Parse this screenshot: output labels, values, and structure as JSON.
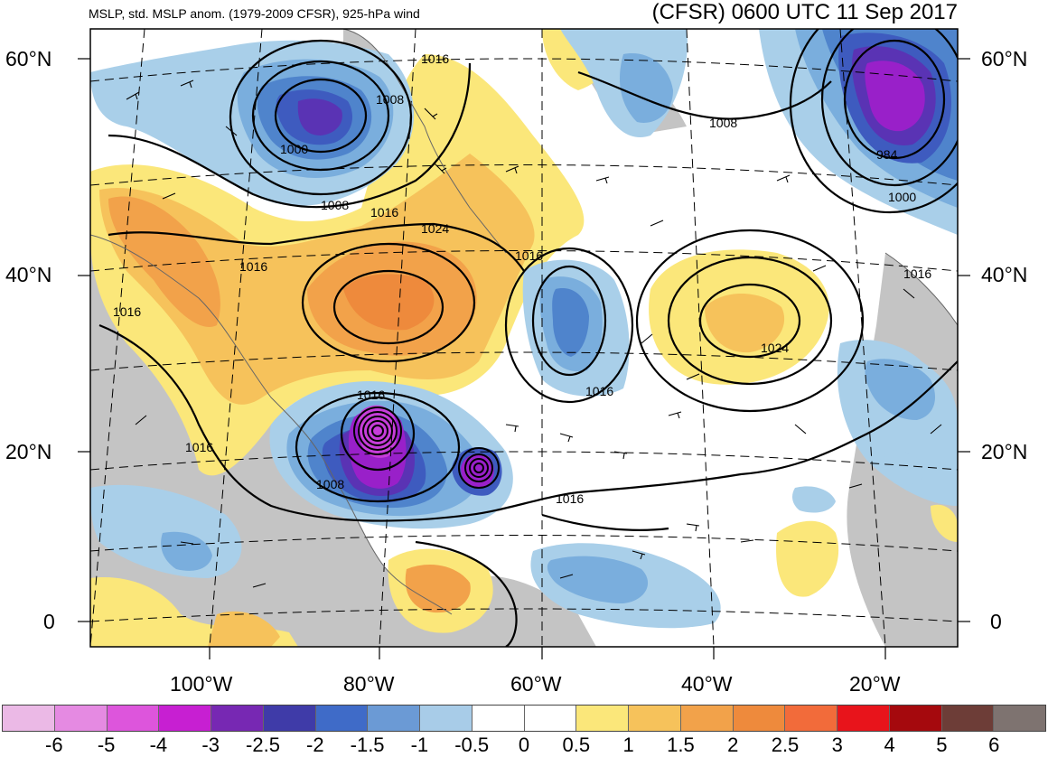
{
  "header": {
    "left_title": "MSLP, std. MSLP anom. (1979-2009 CFSR), 925-hPa wind",
    "right_title": "(CFSR) 0600 UTC 11 Sep 2017"
  },
  "map": {
    "lat_labels": [
      "60°N",
      "40°N",
      "20°N",
      "0"
    ],
    "lon_labels": [
      "100°W",
      "80°W",
      "60°W",
      "40°W",
      "20°W"
    ],
    "contour_labels": [
      "1016",
      "1008",
      "1000",
      "1008",
      "1016",
      "1024",
      "1016",
      "1016",
      "1016",
      "1016",
      "1016",
      "1008",
      "1016",
      "1016",
      "1008",
      "984",
      "1000",
      "1016",
      "1024"
    ],
    "colors": {
      "land_gray": "#c4c4c4",
      "anom_pos_1": "#fbe77a",
      "anom_pos_2": "#f6c25b",
      "anom_pos_3": "#f2a24a",
      "anom_pos_4": "#ee8a3c",
      "anom_neg_1": "#a9cfe9",
      "anom_neg_2": "#7aaedd",
      "anom_neg_3": "#4f84cc",
      "anom_neg_4": "#3e5bbf",
      "anom_neg_5": "#5a33b4",
      "anom_neg_6": "#9920c9",
      "anom_neg_7": "#c63dd9"
    }
  },
  "colorbar": {
    "colors": [
      "#ebb9e6",
      "#e58ae2",
      "#dd55dc",
      "#c71fd2",
      "#7728b3",
      "#3f3ba8",
      "#3f6bc8",
      "#6b9ad5",
      "#a8cce8",
      "#ffffff",
      "#ffffff",
      "#fbe77a",
      "#f6c25b",
      "#f2a24a",
      "#ee8a3c",
      "#f26b3a",
      "#e8141b",
      "#a5090d",
      "#6d3d37",
      "#7e7370"
    ],
    "labels": [
      "-6",
      "-5",
      "-4",
      "-3",
      "-2.5",
      "-2",
      "-1.5",
      "-1",
      "-0.5",
      "0",
      "0.5",
      "1",
      "1.5",
      "2",
      "2.5",
      "3",
      "4",
      "5",
      "6"
    ]
  }
}
